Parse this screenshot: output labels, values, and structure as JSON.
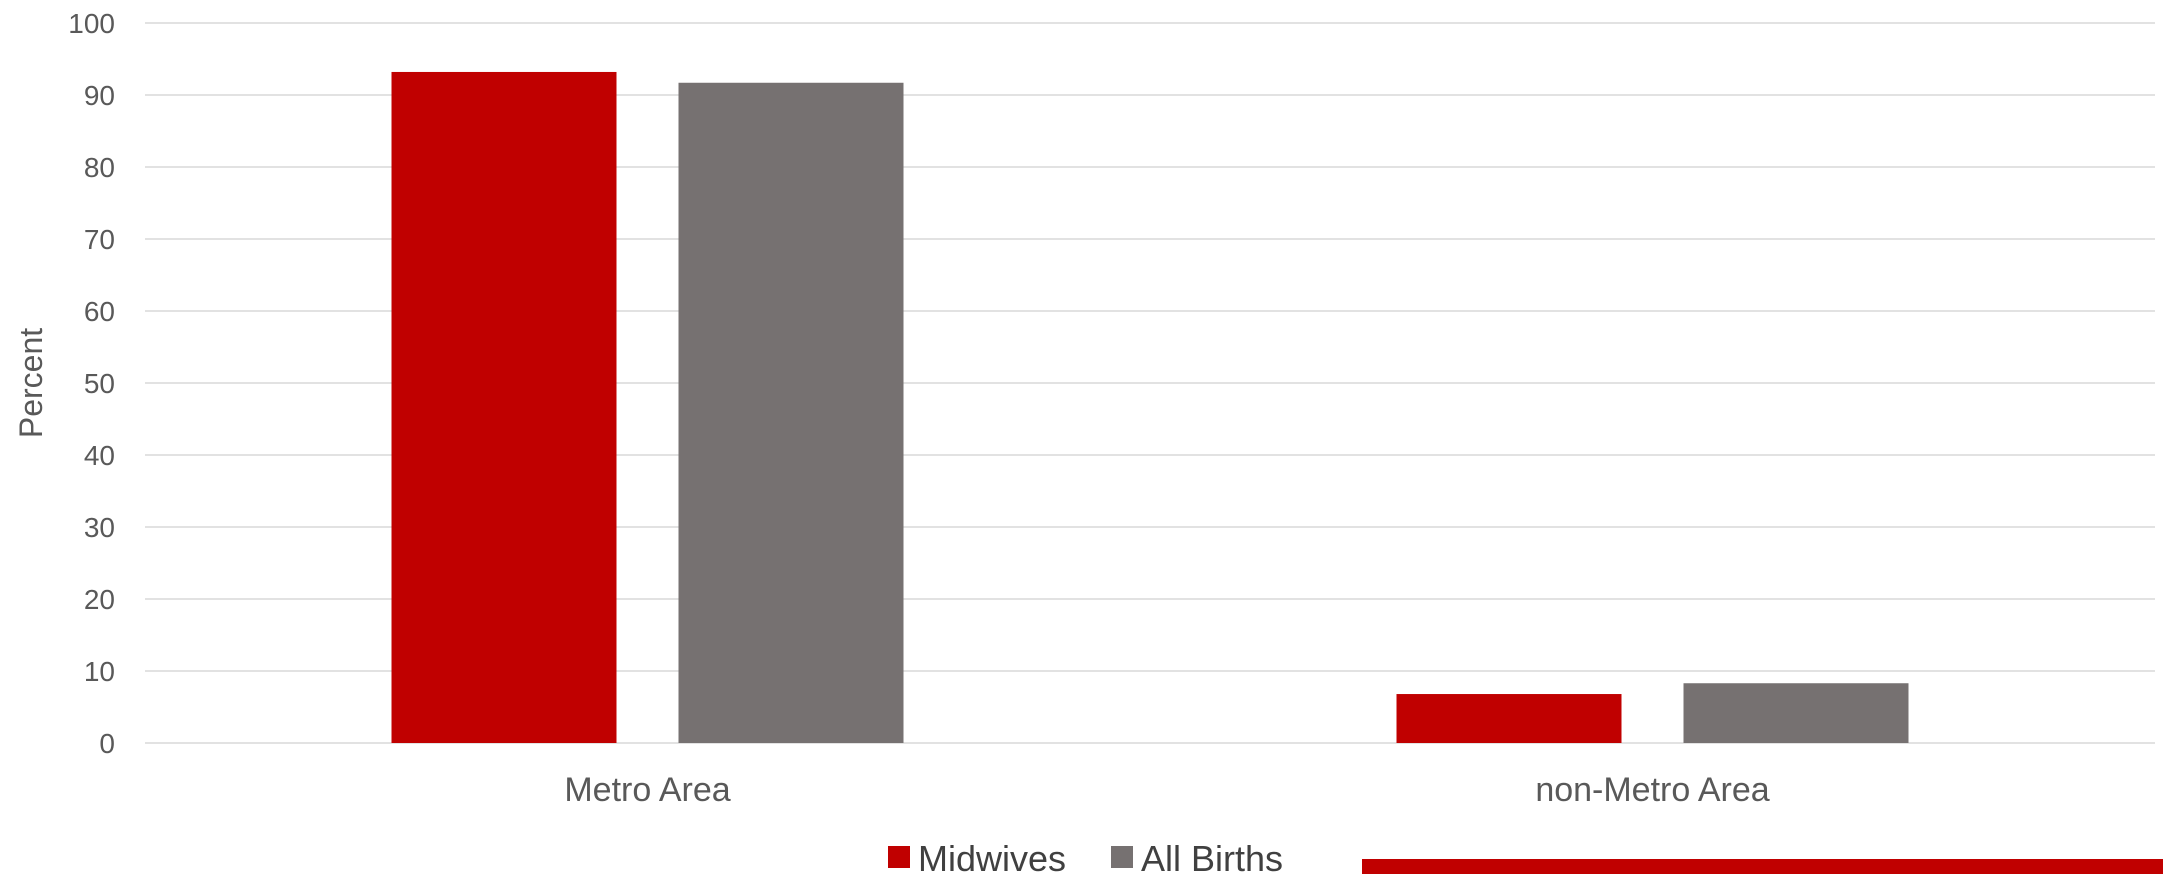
{
  "chart_data": {
    "type": "bar",
    "title": "",
    "xlabel": "",
    "ylabel": "Percent",
    "ylim": [
      0,
      100
    ],
    "yticks": [
      0,
      10,
      20,
      30,
      40,
      50,
      60,
      70,
      80,
      90,
      100
    ],
    "grid": true,
    "legend_position": "bottom",
    "categories": [
      "Metro Area",
      "non-Metro Area"
    ],
    "series": [
      {
        "name": "Midwives",
        "color": "#c00000",
        "values": [
          93.2,
          6.8
        ]
      },
      {
        "name": "All Births",
        "color": "#767171",
        "values": [
          91.7,
          8.3
        ]
      }
    ]
  },
  "decor": {
    "accent_bar_color": "#c00000"
  }
}
